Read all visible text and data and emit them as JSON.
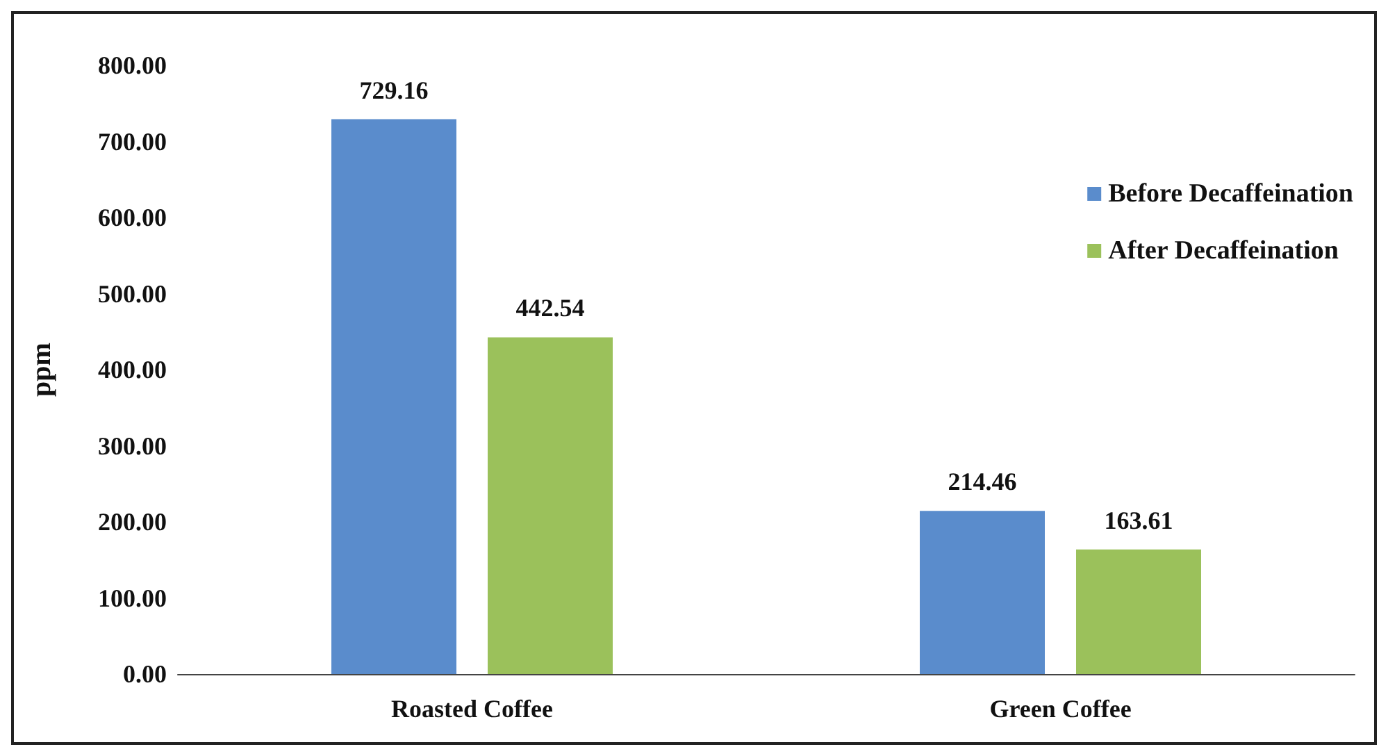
{
  "chart_data": {
    "type": "bar",
    "ylabel": "ppm",
    "categories": [
      "Roasted Coffee",
      "Green Coffee"
    ],
    "series": [
      {
        "name": "Before Decaffeination",
        "color": "#5a8ccc",
        "values": [
          729.16,
          214.46
        ]
      },
      {
        "name": "After Decaffeination",
        "color": "#9bc15b",
        "values": [
          442.54,
          163.61
        ]
      }
    ],
    "ylim": [
      0,
      800
    ],
    "yticks": [
      {
        "value": 0,
        "label": "0.00"
      },
      {
        "value": 100,
        "label": "100.00"
      },
      {
        "value": 200,
        "label": "200.00"
      },
      {
        "value": 300,
        "label": "300.00"
      },
      {
        "value": 400,
        "label": "400.00"
      },
      {
        "value": 500,
        "label": "500.00"
      },
      {
        "value": 600,
        "label": "600.00"
      },
      {
        "value": 700,
        "label": "700.00"
      },
      {
        "value": 800,
        "label": "800.00"
      }
    ],
    "data_labels": true,
    "legend": "right",
    "grid": false
  }
}
